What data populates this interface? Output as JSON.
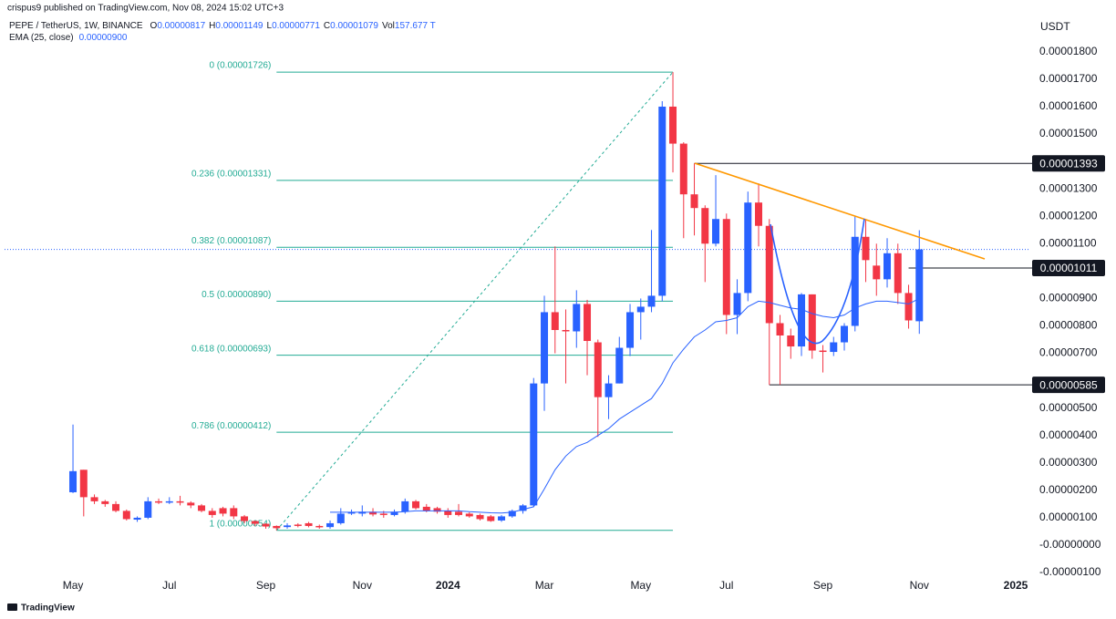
{
  "header": {
    "published": "crispus9 published on TradingView.com, Nov 08, 2024 15:02 UTC+3",
    "symbol": "PEPE / TetherUS, 1W, BINANCE",
    "ohlc": [
      {
        "key": "O",
        "value": "0.00000817"
      },
      {
        "key": "H",
        "value": "0.00001149"
      },
      {
        "key": "L",
        "value": "0.00000771"
      },
      {
        "key": "C",
        "value": "0.00001079"
      },
      {
        "key": "Vol",
        "value": "157.677 T"
      }
    ],
    "ema_value": "0.00000900",
    "currency": "USDT",
    "footer": "TradingView"
  },
  "chart_data": {
    "type": "candlestick",
    "up_color": "#2962ff",
    "down_color": "#f23645",
    "x": [
      0,
      1,
      2,
      3,
      4,
      5,
      6,
      7,
      8,
      9,
      10,
      11,
      12,
      13,
      14,
      15,
      16,
      17,
      18,
      19,
      20,
      21,
      22,
      23,
      24,
      25,
      26,
      27,
      28,
      29,
      30,
      31,
      32,
      33,
      34,
      35,
      36,
      37,
      38,
      39,
      40,
      41,
      42,
      43,
      44,
      45,
      46,
      47,
      48,
      49,
      50,
      51,
      52,
      53,
      54,
      55,
      56,
      57,
      58,
      59,
      60,
      61,
      62,
      63,
      64,
      65,
      66,
      67,
      68,
      69,
      70,
      71,
      72,
      73,
      74,
      75,
      76,
      77,
      78,
      79
    ],
    "open": [
      1.93e-06,
      2.75e-06,
      1.75e-06,
      1.6e-06,
      1.5e-06,
      1.25e-06,
      9.3e-07,
      1e-06,
      1.6e-06,
      1.55e-06,
      1.6e-06,
      1.55e-06,
      1.45e-06,
      1.25e-06,
      1.35e-06,
      1.35e-06,
      1.05e-06,
      8.8e-07,
      7.8e-07,
      7e-07,
      6.6e-07,
      7.5e-07,
      8e-07,
      7e-07,
      6.6e-07,
      8e-07,
      1.15e-06,
      1.15e-06,
      1.22e-06,
      1.15e-06,
      1.1e-06,
      1.22e-06,
      1.6e-06,
      1.4e-06,
      1.35e-06,
      1.25e-06,
      1.22e-06,
      1.15e-06,
      1.1e-06,
      1.05e-06,
      9e-07,
      1.05e-06,
      1.25e-06,
      1.45e-06,
      5.9e-06,
      8.5e-06,
      7.85e-06,
      7.8e-06,
      8.8e-06,
      7.4e-06,
      5.4e-06,
      5.9e-06,
      7.2e-06,
      8.5e-06,
      8.7e-06,
      9.1e-06,
      1.6e-05,
      1.465e-05,
      1.28e-05,
      1.23e-05,
      1.1e-05,
      1.19e-05,
      8.4e-06,
      9.2e-06,
      1.25e-05,
      1.165e-05,
      8.1e-06,
      7.65e-06,
      7.25e-06,
      9.15e-06,
      7.1e-06,
      7.05e-06,
      7.4e-06,
      8e-06,
      1.125e-05,
      1.02e-05,
      9.7e-06,
      1.065e-05,
      9.2e-06,
      8.17e-06
    ],
    "high": [
      4.4e-06,
      2.75e-06,
      1.85e-06,
      1.65e-06,
      1.6e-06,
      1.3e-06,
      1.05e-06,
      1.75e-06,
      1.7e-06,
      1.75e-06,
      1.8e-06,
      1.6e-06,
      1.5e-06,
      1.35e-06,
      1.4e-06,
      1.45e-06,
      1.1e-06,
      9e-07,
      8e-07,
      7.2e-07,
      8e-07,
      8e-07,
      8.5e-07,
      7.5e-07,
      9e-07,
      1.35e-06,
      1.3e-06,
      1.45e-06,
      1.35e-06,
      1.25e-06,
      1.3e-06,
      1.7e-06,
      1.65e-06,
      1.5e-06,
      1.4e-06,
      1.35e-06,
      1.5e-06,
      1.2e-06,
      1.15e-06,
      1.1e-06,
      1.1e-06,
      1.3e-06,
      1.5e-06,
      6.1e-06,
      9.1e-06,
      1.09e-05,
      8.6e-06,
      9.3e-06,
      8.95e-06,
      7.5e-06,
      6.2e-06,
      7.6e-06,
      8.8e-06,
      9e-06,
      1.15e-05,
      1.62e-05,
      1.726e-05,
      1.47e-05,
      1.393e-05,
      1.24e-05,
      1.35e-05,
      1.21e-05,
      9.7e-06,
      1.29e-05,
      1.32e-05,
      1.19e-05,
      8.4e-06,
      7.9e-06,
      9.2e-06,
      9.15e-06,
      7.3e-06,
      7.6e-06,
      8.1e-06,
      1.2e-05,
      1.19e-05,
      1.1e-05,
      1.12e-05,
      1.1e-05,
      9.5e-06,
      1.149e-05
    ],
    "low": [
      1.9e-06,
      1.05e-06,
      1.5e-06,
      1.4e-06,
      1.2e-06,
      9e-07,
      8.5e-07,
      9.5e-07,
      1.5e-06,
      1.5e-06,
      1.45e-06,
      1.35e-06,
      1.2e-06,
      1e-06,
      1.05e-06,
      9.5e-07,
      8e-07,
      7e-07,
      6e-07,
      5.4e-07,
      6e-07,
      6.5e-07,
      6.5e-07,
      6e-07,
      6e-07,
      7.5e-07,
      1.1e-06,
      1.05e-06,
      1.05e-06,
      1e-06,
      1.05e-06,
      1.15e-06,
      1.3e-06,
      1.2e-06,
      1.15e-06,
      1e-06,
      1.05e-06,
      1e-06,
      9e-07,
      8.5e-07,
      8.5e-07,
      1e-06,
      1.15e-06,
      1.4e-06,
      4.9e-06,
      7e-06,
      5.9e-06,
      7.2e-06,
      6.2e-06,
      3.95e-06,
      4.6e-06,
      5.9e-06,
      6.9e-06,
      7.5e-06,
      8.5e-06,
      8.9e-06,
      1.36e-05,
      1.12e-05,
      1.13e-05,
      9.6e-06,
      1.09e-05,
      7.7e-06,
      7.7e-06,
      8.9e-06,
      1.09e-05,
      5.85e-06,
      5.85e-06,
      6.8e-06,
      6.9e-06,
      6.8e-06,
      6.3e-06,
      6.9e-06,
      7.1e-06,
      7.8e-06,
      9.6e-06,
      9.1e-06,
      9.4e-06,
      8.8e-06,
      7.9e-06,
      7.71e-06
    ],
    "close": [
      2.7e-06,
      1.75e-06,
      1.6e-06,
      1.5e-06,
      1.25e-06,
      9.5e-07,
      1e-06,
      1.6e-06,
      1.55e-06,
      1.6e-06,
      1.55e-06,
      1.45e-06,
      1.25e-06,
      1.1e-06,
      1.15e-06,
      1.05e-06,
      8.8e-07,
      7.8e-07,
      6.8e-07,
      6.2e-07,
      7.2e-07,
      7e-07,
      7e-07,
      6.5e-07,
      8e-07,
      1.15e-06,
      1.2e-06,
      1.22e-06,
      1.12e-06,
      1.1e-06,
      1.22e-06,
      1.6e-06,
      1.35e-06,
      1.25e-06,
      1.22e-06,
      1.1e-06,
      1.1e-06,
      1.05e-06,
      9.5e-07,
      8.8e-07,
      1.05e-06,
      1.25e-06,
      1.45e-06,
      5.9e-06,
      8.5e-06,
      7.85e-06,
      7.8e-06,
      8.8e-06,
      7.45e-06,
      5.4e-06,
      5.9e-06,
      7.2e-06,
      8.5e-06,
      8.7e-06,
      9.1e-06,
      1.6e-05,
      1.465e-05,
      1.28e-05,
      1.23e-05,
      1.1e-05,
      1.19e-05,
      8.4e-06,
      9.2e-06,
      1.25e-05,
      1.165e-05,
      8.1e-06,
      7.65e-06,
      7.25e-06,
      9.15e-06,
      7.1e-06,
      7.05e-06,
      7.4e-06,
      8e-06,
      1.125e-05,
      1.04e-05,
      9.7e-06,
      1.065e-05,
      9.2e-06,
      8.2e-06,
      1.079e-05
    ],
    "ema": {
      "name": "EMA (25, close)",
      "color": "#2962ff",
      "values": [
        null,
        null,
        null,
        null,
        null,
        null,
        null,
        null,
        null,
        null,
        null,
        null,
        null,
        null,
        null,
        null,
        null,
        null,
        null,
        null,
        null,
        null,
        null,
        null,
        1.2e-06,
        1.2e-06,
        1.2e-06,
        1.2e-06,
        1.2e-06,
        1.2e-06,
        1.2e-06,
        1.22e-06,
        1.25e-06,
        1.25e-06,
        1.25e-06,
        1.25e-06,
        1.25e-06,
        1.22e-06,
        1.2e-06,
        1.18e-06,
        1.17e-06,
        1.2e-06,
        1.3e-06,
        1.4e-06,
        2.05e-06,
        2.75e-06,
        3.25e-06,
        3.6e-06,
        3.75e-06,
        4e-06,
        4.25e-06,
        4.6e-06,
        4.85e-06,
        5.1e-06,
        5.35e-06,
        5.9e-06,
        6.65e-06,
        7.15e-06,
        7.6e-06,
        7.85e-06,
        8.15e-06,
        8.2e-06,
        8.3e-06,
        8.7e-06,
        8.9e-06,
        8.85e-06,
        8.75e-06,
        8.65e-06,
        8.6e-06,
        8.45e-06,
        8.35e-06,
        8.3e-06,
        8.4e-06,
        8.65e-06,
        8.8e-06,
        8.9e-06,
        8.9e-06,
        8.85e-06,
        8.8e-06,
        9e-06
      ]
    },
    "fib": {
      "color": "#22ab94",
      "levels": [
        {
          "value": 1.726e-05,
          "label": "0 (0.00001726)"
        },
        {
          "value": 1.331e-05,
          "label": "0.236 (0.00001331)"
        },
        {
          "value": 1.087e-05,
          "label": "0.382 (0.00001087)"
        },
        {
          "value": 8.9e-06,
          "label": "0.5 (0.00000890)"
        },
        {
          "value": 6.93e-06,
          "label": "0.618 (0.00000693)"
        },
        {
          "value": 4.12e-06,
          "label": "0.786 (0.00000412)"
        },
        {
          "value": 5.4e-07,
          "label": "1 (0.00000054)"
        }
      ]
    },
    "price_lines": [
      {
        "value": 1.393e-05,
        "label": "0.00001393"
      },
      {
        "value": 1.011e-05,
        "label": "0.00001011"
      },
      {
        "value": 5.85e-06,
        "label": "0.00000585"
      }
    ],
    "xlim": [
      -1.28,
      89.36
    ],
    "ylim": [
      -1.131e-06,
      1.856e-05
    ],
    "xticks": [
      {
        "value": 0,
        "label": "May"
      },
      {
        "value": 9,
        "label": "Jul"
      },
      {
        "value": 18,
        "label": "Sep"
      },
      {
        "value": 27,
        "label": "Nov"
      },
      {
        "value": 35,
        "label": "2024"
      },
      {
        "value": 44,
        "label": "Mar"
      },
      {
        "value": 53,
        "label": "May"
      },
      {
        "value": 61,
        "label": "Jul"
      },
      {
        "value": 70,
        "label": "Sep"
      },
      {
        "value": 79,
        "label": "Nov"
      },
      {
        "value": 88,
        "label": "2025"
      }
    ],
    "yticks": [
      {
        "value": 1.8e-05,
        "label": "0.00001800"
      },
      {
        "value": 1.7e-05,
        "label": "0.00001700"
      },
      {
        "value": 1.6e-05,
        "label": "0.00001600"
      },
      {
        "value": 1.5e-05,
        "label": "0.00001500"
      },
      {
        "value": 1.3e-05,
        "label": "0.00001300"
      },
      {
        "value": 1.2e-05,
        "label": "0.00001200"
      },
      {
        "value": 1.1e-05,
        "label": "0.00001100"
      },
      {
        "value": 9e-06,
        "label": "0.00000900"
      },
      {
        "value": 8e-06,
        "label": "0.00000800"
      },
      {
        "value": 7e-06,
        "label": "0.00000700"
      },
      {
        "value": 5e-06,
        "label": "0.00000500"
      },
      {
        "value": 4e-06,
        "label": "0.00000400"
      },
      {
        "value": 3e-06,
        "label": "0.00000300"
      },
      {
        "value": 2e-06,
        "label": "0.00000200"
      },
      {
        "value": 1e-06,
        "label": "0.00000100"
      },
      {
        "value": 0,
        "label": "-0.00000000"
      },
      {
        "value": -1e-06,
        "label": "-0.00000100"
      }
    ],
    "grid": false
  }
}
